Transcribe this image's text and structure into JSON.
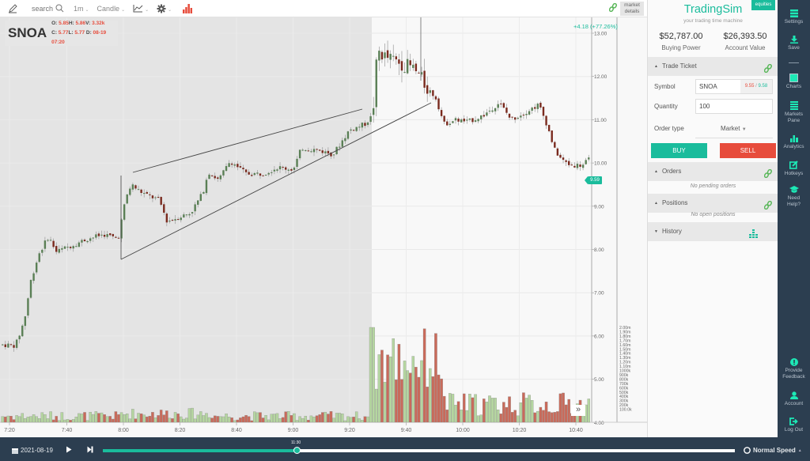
{
  "toolbar": {
    "search_placeholder": "search",
    "interval": "1m",
    "chart_type": "Candle",
    "market_details": "market details"
  },
  "chart": {
    "symbol": "SNOA",
    "ohlc": {
      "open_label": "O:",
      "open": "5.85",
      "high_label": "H:",
      "high": "5.86",
      "vol_label": "V:",
      "vol": "3.32k",
      "close_label": "C:",
      "close": "5.77",
      "low_label": "L:",
      "low": "5.77",
      "date_label": "D:",
      "date": "08-19 07:20"
    },
    "change": "+4.18 (+77.26%)",
    "current_price": "9.59",
    "price_ticks": [
      "13.00",
      "12.00",
      "11.00",
      "10.00",
      "9.00",
      "8.00",
      "7.00",
      "6.00",
      "5.00",
      "4.00"
    ],
    "volume_ticks": [
      "2.00m",
      "1.90m",
      "1.80m",
      "1.70m",
      "1.60m",
      "1.50m",
      "1.40m",
      "1.30m",
      "1.20m",
      "1.10m",
      "1000k",
      "900k",
      "800k",
      "700k",
      "600k",
      "500k",
      "400k",
      "300k",
      "200k",
      "100.0k"
    ],
    "time_ticks": [
      "7:20",
      "7:40",
      "8:00",
      "8:20",
      "8:40",
      "9:00",
      "9:20",
      "9:40",
      "10:00",
      "10:20",
      "10:40"
    ],
    "colors": {
      "up": "#5a7f55",
      "down": "#7a2a1e",
      "vol_up": "#b5d6a0",
      "vol_down": "#c96a5a",
      "premarket_bg": "#e4e4e4",
      "accent": "#1abc9c",
      "sell": "#e74c3c"
    }
  },
  "panel": {
    "brand": "TradingSim",
    "tagline": "your trading time machine",
    "badge": "equities",
    "buying_power": "$52,787.00",
    "buying_power_label": "Buying Power",
    "account_value": "$26,393.50",
    "account_value_label": "Account Value",
    "trade_ticket": {
      "title": "Trade Ticket",
      "symbol_label": "Symbol",
      "symbol_value": "SNOA",
      "bid": "9.55",
      "ask_sep": " / ",
      "ask": "9.58",
      "quantity_label": "Quantity",
      "quantity_value": "100",
      "order_type_label": "Order type",
      "order_type_value": "Market",
      "buy_label": "BUY",
      "sell_label": "SELL"
    },
    "orders": {
      "title": "Orders",
      "empty": "No pending orders"
    },
    "positions": {
      "title": "Positions",
      "empty": "No open positions"
    },
    "history": {
      "title": "History"
    }
  },
  "nav": {
    "items": [
      {
        "label": "Settings"
      },
      {
        "label": "Save"
      },
      {
        "label": "Charts"
      },
      {
        "label": "Markets Pane"
      },
      {
        "label": "Analytics"
      },
      {
        "label": "Hotkeys"
      },
      {
        "label": "Need Help?"
      },
      {
        "label": "Provide Feedback"
      },
      {
        "label": "Account"
      },
      {
        "label": "Log Out"
      }
    ]
  },
  "playback": {
    "date": "2021-08-19",
    "time": "11:30",
    "speed": "Normal Speed"
  }
}
